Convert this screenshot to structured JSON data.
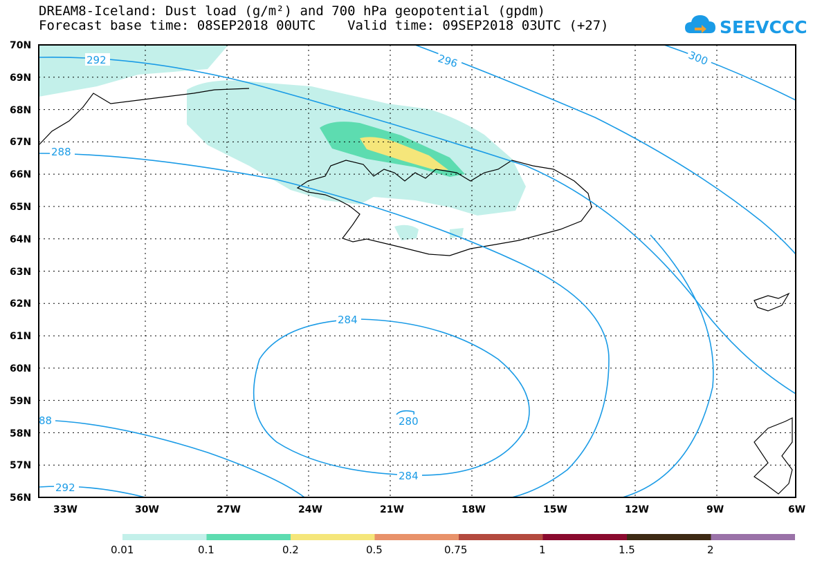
{
  "title": {
    "line1": "DREAM8-Iceland: Dust load (g/m²) and 700 hPa geopotential (gpdm)",
    "line2": "Forecast base time: 08SEP2018 00UTC    Valid time: 09SEP2018 03UTC (+27)"
  },
  "logo": {
    "text": "SEEVCCC",
    "icon": "cloud-arrow-icon",
    "color": "#1a9be6"
  },
  "map": {
    "lat_labels": [
      "70N",
      "69N",
      "68N",
      "67N",
      "66N",
      "65N",
      "64N",
      "63N",
      "62N",
      "61N",
      "60N",
      "59N",
      "58N",
      "57N",
      "56N"
    ],
    "lon_labels": [
      "33W",
      "30W",
      "27W",
      "24W",
      "21W",
      "18W",
      "15W",
      "12W",
      "9W",
      "6W"
    ],
    "contour_color": "#1a9be6",
    "contour_labels": [
      "292",
      "296",
      "300",
      "288",
      "284",
      "280",
      "284",
      "88",
      "292"
    ]
  },
  "colorbar": {
    "colors": [
      "#c3f0ea",
      "#5ddcb0",
      "#f5e67a",
      "#e8926a",
      "#b34a3e",
      "#8a0a2e",
      "#3d2a14",
      "#9a72a8"
    ],
    "labels": [
      "0.01",
      "0.1",
      "0.2",
      "0.5",
      "0.75",
      "1",
      "1.5",
      "2"
    ]
  }
}
